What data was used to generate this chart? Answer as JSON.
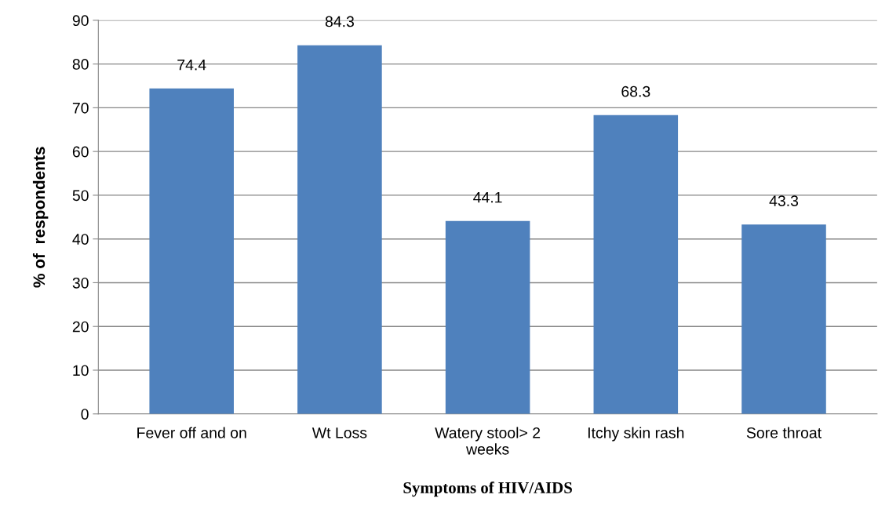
{
  "chart_data": {
    "type": "bar",
    "xlabel": "Symptoms of HIV/AIDS",
    "ylabel": "% of  respondents",
    "categories": [
      "Fever off and on",
      "Wt Loss",
      "Watery stool> 2 weeks",
      "Itchy skin rash",
      "Sore throat"
    ],
    "values": [
      74.4,
      84.3,
      44.1,
      68.3,
      43.3
    ],
    "color": "#4f81bd",
    "ylim": [
      0,
      90
    ],
    "yticks": [
      0,
      10,
      20,
      30,
      40,
      50,
      60,
      70,
      80,
      90
    ],
    "grid": "y",
    "data_labels": true,
    "legend": false
  }
}
